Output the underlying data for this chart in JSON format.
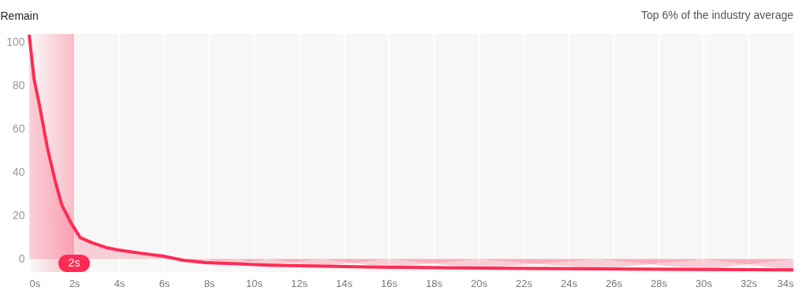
{
  "chart_data": {
    "type": "area",
    "ylabel": "Remain",
    "annotations": [
      "Top 6% of the industry average"
    ],
    "x": [
      0,
      0.22,
      0.46,
      0.81,
      1.16,
      1.45,
      1.86,
      2.27,
      2.8,
      3.5,
      3.96,
      5.02,
      5.95,
      6.88,
      7.82,
      9.23,
      10.63,
      13,
      16,
      20,
      25.4,
      30,
      34
    ],
    "series": [
      {
        "color": "#fe2c55",
        "values": [
          103.6,
          83,
          71,
          51.4,
          35.9,
          25,
          16.7,
          9.9,
          7.5,
          5.1,
          4.2,
          2.6,
          1.4,
          -0.6,
          -1.6,
          -2.2,
          -2.8,
          -3.3,
          -3.8,
          -4.2,
          -4.5,
          -4.8,
          -5.0
        ]
      }
    ],
    "xlim": [
      0,
      34
    ],
    "xticks": [
      {
        "value": 0,
        "label": "0s"
      },
      {
        "value": 2,
        "label": "2s"
      },
      {
        "value": 4,
        "label": "4s"
      },
      {
        "value": 6,
        "label": "6s"
      },
      {
        "value": 8,
        "label": "8s"
      },
      {
        "value": 10,
        "label": "10s"
      },
      {
        "value": 12,
        "label": "12s"
      },
      {
        "value": 14,
        "label": "14s"
      },
      {
        "value": 16,
        "label": "16s"
      },
      {
        "value": 18,
        "label": "18s"
      },
      {
        "value": 20,
        "label": "20s"
      },
      {
        "value": 22,
        "label": "22s"
      },
      {
        "value": 24,
        "label": "24s"
      },
      {
        "value": 26,
        "label": "26s"
      },
      {
        "value": 28,
        "label": "28s"
      },
      {
        "value": 30,
        "label": "30s"
      },
      {
        "value": 32,
        "label": "32s"
      },
      {
        "value": 34,
        "label": "34s"
      }
    ],
    "ylim": [
      -6,
      104
    ],
    "yticks": [
      0,
      20,
      40,
      60,
      80,
      100
    ],
    "grid": "x",
    "bands": [
      {
        "axis": "x",
        "from": 0,
        "to": 2,
        "label": "2s",
        "color": "#fe2c55"
      }
    ]
  }
}
